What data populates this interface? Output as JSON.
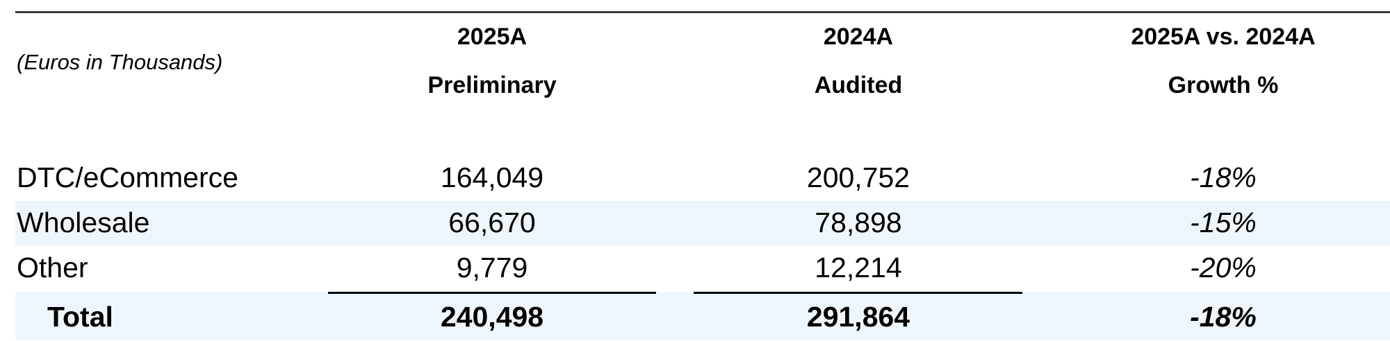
{
  "table": {
    "units_label": "(Euros in Thousands)",
    "headers": [
      {
        "line1": "2025A",
        "line2": "Preliminary"
      },
      {
        "line1": "2024A",
        "line2": "Audited"
      },
      {
        "line1": "2025A vs. 2024A",
        "line2": "Growth %"
      }
    ],
    "rows": [
      {
        "label": "DTC/eCommerce",
        "v2025": "164,049",
        "v2024": "200,752",
        "growth": "-18%"
      },
      {
        "label": "Wholesale",
        "v2025": "66,670",
        "v2024": "78,898",
        "growth": "-15%"
      },
      {
        "label": "Other",
        "v2025": "9,779",
        "v2024": "12,214",
        "growth": "-20%"
      }
    ],
    "total": {
      "label": "Total",
      "v2025": "240,498",
      "v2024": "291,864",
      "growth": "-18%"
    },
    "band_color": "#eef6fd"
  }
}
